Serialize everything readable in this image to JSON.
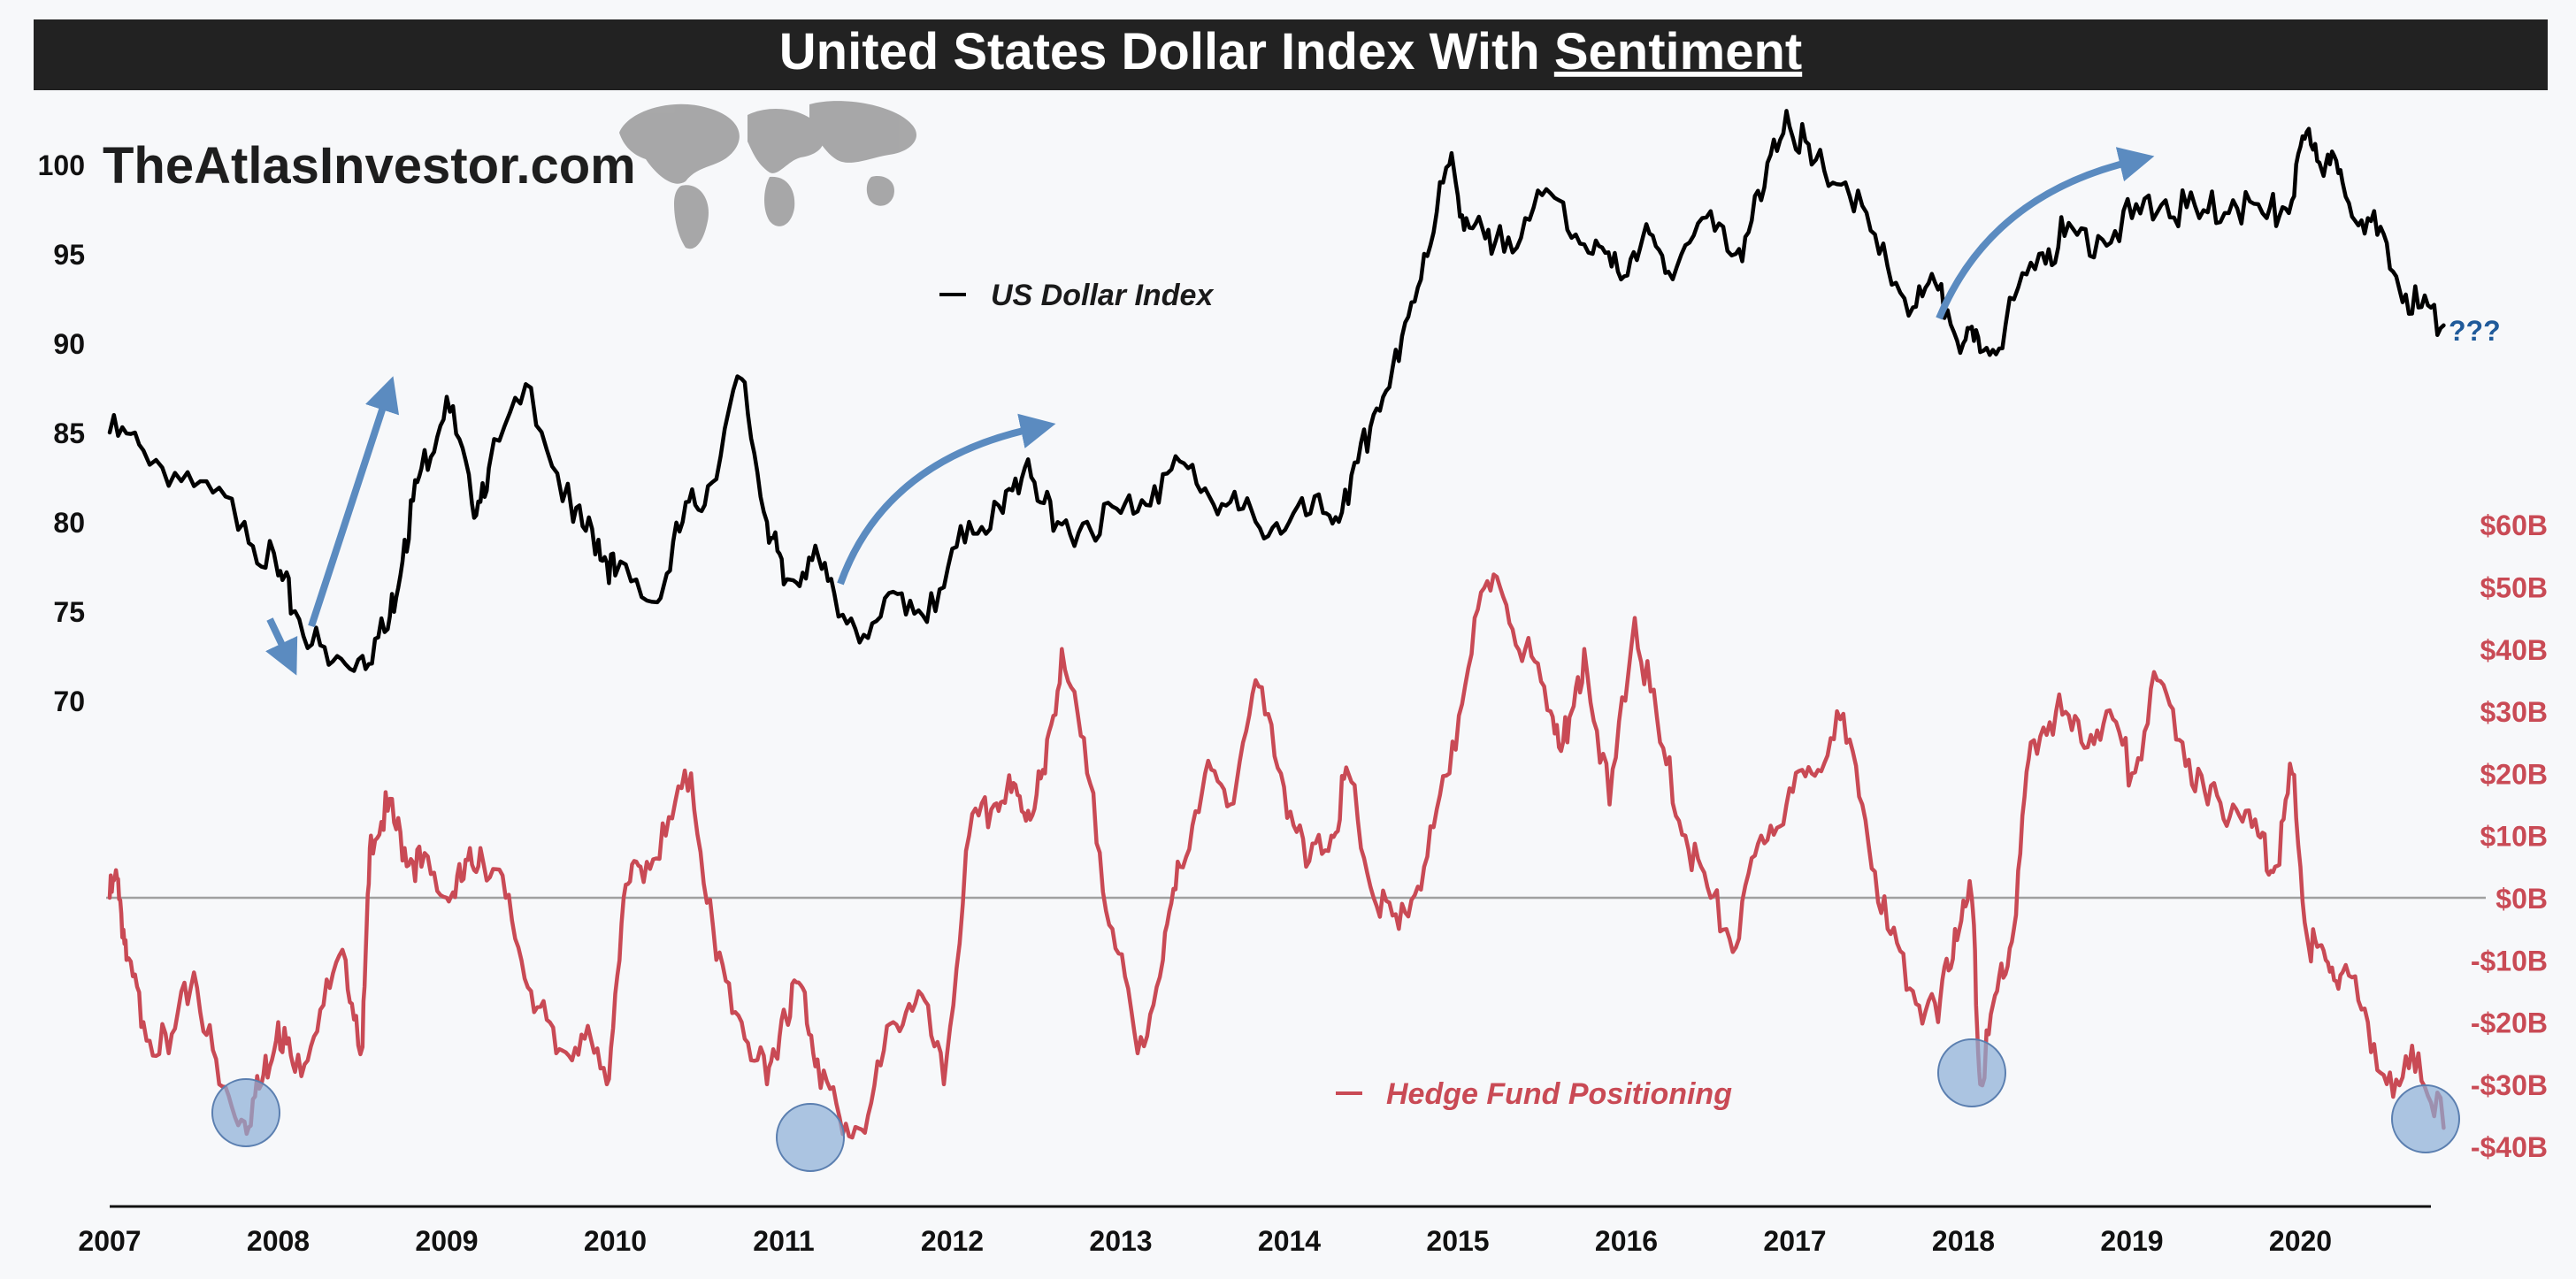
{
  "header": {
    "title_prefix": "United States Dollar Index With ",
    "title_emphasis": "Sentiment"
  },
  "watermark": {
    "site": "TheAtlasInvestor.com",
    "logo_icon": "world-map-icon"
  },
  "colors": {
    "title_bar": "#222222",
    "title_text": "#ffffff",
    "dxy_line": "#000000",
    "positioning_line": "#c94a55",
    "arrow": "#5b8bc0",
    "circle": "#8aaed6",
    "question": "#1f5a9a",
    "zero_line": "#a0a0a0",
    "background": "#f7f8fa"
  },
  "annotations": {
    "question_marks": "???",
    "arrow_icon": "arrow-icon",
    "circle_icon": "circle-highlight-icon"
  },
  "chart_data": [
    {
      "type": "line",
      "title": "United States Dollar Index With Sentiment",
      "ylim": [
        70,
        103
      ],
      "y_ticks": [
        70,
        75,
        80,
        85,
        90,
        95,
        100
      ],
      "y_tick_labels": [
        "70",
        "75",
        "80",
        "85",
        "90",
        "95",
        "100"
      ],
      "x_tick_labels": [
        "2007",
        "2008",
        "2009",
        "2010",
        "2011",
        "2012",
        "2013",
        "2014",
        "2015",
        "2016",
        "2017",
        "2018",
        "2019",
        "2020"
      ],
      "legend_position": "top-center",
      "series": [
        {
          "name": "US Dollar Index",
          "x": [
            2007.0,
            2007.2,
            2007.5,
            2007.8,
            2008.0,
            2008.1,
            2008.3,
            2008.5,
            2008.65,
            2008.75,
            2008.85,
            2009.0,
            2009.15,
            2009.25,
            2009.5,
            2009.75,
            2009.9,
            2010.0,
            2010.25,
            2010.4,
            2010.55,
            2010.75,
            2010.9,
            2011.0,
            2011.15,
            2011.3,
            2011.5,
            2011.7,
            2011.9,
            2012.1,
            2012.3,
            2012.45,
            2012.6,
            2012.8,
            2013.0,
            2013.2,
            2013.4,
            2013.6,
            2013.8,
            2014.0,
            2014.2,
            2014.35,
            2014.5,
            2014.65,
            2014.8,
            2014.95,
            2015.05,
            2015.2,
            2015.4,
            2015.6,
            2015.8,
            2015.95,
            2016.1,
            2016.25,
            2016.45,
            2016.65,
            2016.8,
            2016.95,
            2017.1,
            2017.3,
            2017.5,
            2017.7,
            2017.85,
            2018.0,
            2018.1,
            2018.25,
            2018.45,
            2018.6,
            2018.8,
            2019.0,
            2019.2,
            2019.4,
            2019.6,
            2019.8,
            2019.95,
            2020.05,
            2020.15,
            2020.25,
            2020.4,
            2020.55,
            2020.7,
            2020.85
          ],
          "values": [
            85,
            84,
            82,
            80,
            77,
            75,
            72,
            72.5,
            74,
            79,
            83,
            87,
            81,
            83,
            87.5,
            80,
            79,
            77,
            75.5,
            80,
            82,
            88,
            80,
            76.5,
            78,
            76,
            73.5,
            76,
            75,
            80,
            80.5,
            83.5,
            79.5,
            80,
            80.5,
            82,
            83,
            81,
            80,
            80,
            80.5,
            81,
            86,
            89,
            95,
            100,
            97,
            95,
            97,
            98,
            95,
            94,
            96,
            94,
            97,
            95,
            98,
            103,
            100,
            99,
            95,
            92,
            93,
            90,
            89.5,
            91,
            95,
            96,
            96,
            97,
            98,
            97,
            98,
            97,
            98,
            102,
            100,
            99,
            97,
            94,
            92,
            91
          ]
        }
      ]
    },
    {
      "type": "line",
      "ylim": [
        -40,
        60
      ],
      "y_ticks": [
        60,
        50,
        40,
        30,
        20,
        10,
        0,
        -10,
        -20,
        -30,
        -40
      ],
      "y_tick_labels": [
        "$60B",
        "$50B",
        "$40B",
        "$30B",
        "$20B",
        "$10B",
        "$0B",
        "-$10B",
        "-$20B",
        "-$30B",
        "-$40B"
      ],
      "zero_line": true,
      "legend_position": "bottom-center",
      "series": [
        {
          "name": "Hedge Fund Positioning",
          "x": [
            2007.0,
            2007.05,
            2007.1,
            2007.2,
            2007.35,
            2007.5,
            2007.65,
            2007.8,
            2007.9,
            2008.0,
            2008.1,
            2008.25,
            2008.4,
            2008.5,
            2008.55,
            2008.65,
            2008.75,
            2008.85,
            2009.0,
            2009.1,
            2009.2,
            2009.35,
            2009.5,
            2009.65,
            2009.8,
            2009.95,
            2010.05,
            2010.15,
            2010.3,
            2010.45,
            2010.6,
            2010.75,
            2010.9,
            2011.0,
            2011.1,
            2011.2,
            2011.35,
            2011.5,
            2011.65,
            2011.8,
            2011.95,
            2012.1,
            2012.25,
            2012.35,
            2012.45,
            2012.55,
            2012.65,
            2012.8,
            2012.95,
            2013.1,
            2013.25,
            2013.35,
            2013.5,
            2013.65,
            2013.8,
            2013.95,
            2014.1,
            2014.25,
            2014.35,
            2014.5,
            2014.65,
            2014.8,
            2014.95,
            2015.1,
            2015.25,
            2015.4,
            2015.55,
            2015.65,
            2015.75,
            2015.9,
            2016.05,
            2016.2,
            2016.35,
            2016.5,
            2016.65,
            2016.8,
            2016.95,
            2017.1,
            2017.25,
            2017.4,
            2017.55,
            2017.7,
            2017.85,
            2017.95,
            2018.05,
            2018.1,
            2018.2,
            2018.3,
            2018.4,
            2018.55,
            2018.7,
            2018.85,
            2019.0,
            2019.15,
            2019.3,
            2019.45,
            2019.6,
            2019.75,
            2019.85,
            2019.95,
            2020.05,
            2020.15,
            2020.25,
            2020.4,
            2020.55,
            2020.7,
            2020.85
          ],
          "values": [
            0,
            3,
            -10,
            -20,
            -25,
            -12,
            -30,
            -36,
            -30,
            -20,
            -28,
            -18,
            -10,
            -24,
            10,
            14,
            8,
            5,
            0,
            3,
            8,
            0,
            -15,
            -25,
            -22,
            -30,
            0,
            5,
            10,
            20,
            -10,
            -20,
            -30,
            -18,
            -14,
            -26,
            -38,
            -35,
            -20,
            -15,
            -30,
            10,
            15,
            17,
            14,
            20,
            40,
            20,
            -5,
            -25,
            -10,
            5,
            20,
            15,
            35,
            20,
            5,
            10,
            20,
            0,
            -5,
            5,
            20,
            45,
            50,
            40,
            30,
            25,
            40,
            15,
            45,
            25,
            10,
            0,
            -8,
            10,
            15,
            20,
            30,
            15,
            -5,
            -15,
            -20,
            -5,
            0,
            -30,
            -15,
            -5,
            25,
            30,
            25,
            30,
            20,
            35,
            25,
            15,
            15,
            10,
            5,
            20,
            -8,
            -10,
            -12,
            -20,
            -32,
            -25,
            -37
          ]
        }
      ]
    }
  ]
}
